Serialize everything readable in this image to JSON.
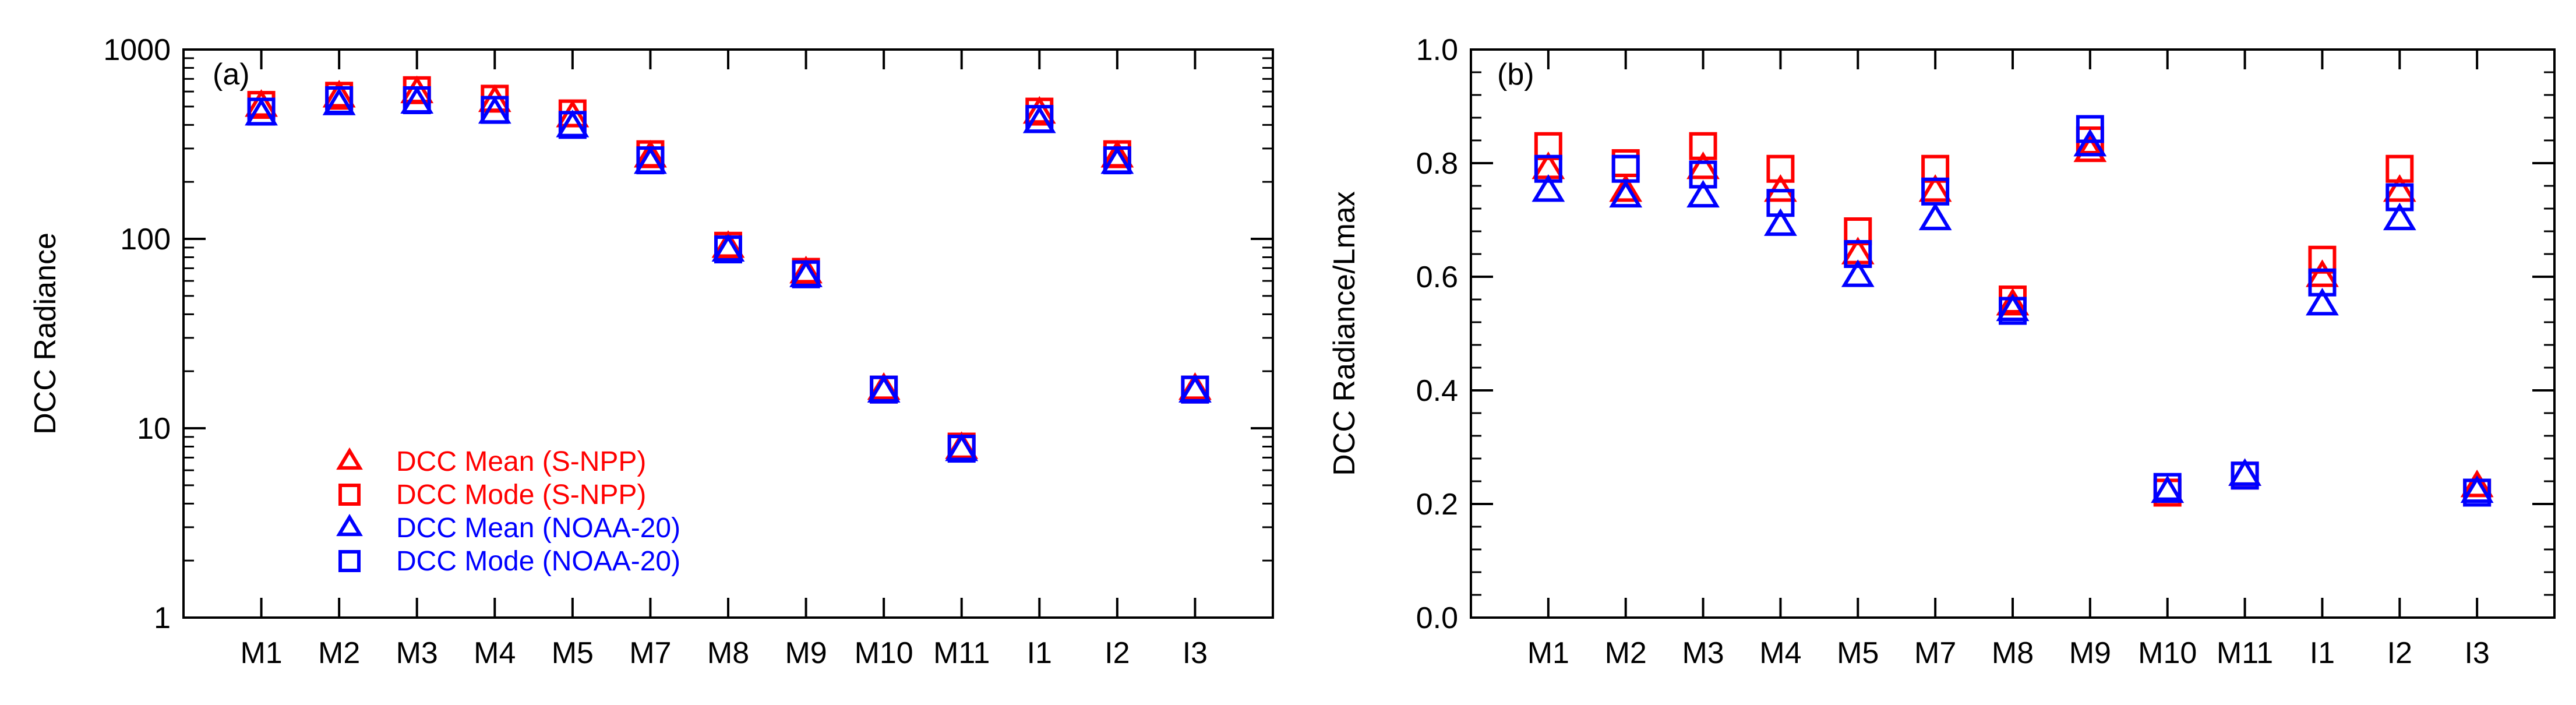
{
  "colors": {
    "snpp": "#ff0000",
    "noaa20": "#0000ff",
    "axis": "#000000"
  },
  "series_meta": [
    {
      "key": "mean_snpp",
      "name": "DCC Mean (S-NPP)",
      "marker": "triangle",
      "color": "#ff0000"
    },
    {
      "key": "mode_snpp",
      "name": "DCC Mode (S-NPP)",
      "marker": "square",
      "color": "#ff0000"
    },
    {
      "key": "mean_noaa20",
      "name": "DCC Mean (NOAA-20)",
      "marker": "triangle",
      "color": "#0000ff"
    },
    {
      "key": "mode_noaa20",
      "name": "DCC Mode (NOAA-20)",
      "marker": "square",
      "color": "#0000ff"
    }
  ],
  "chart_data": [
    {
      "type": "scatter",
      "panel_label": "(a)",
      "ylabel": "DCC Radiance",
      "xlabel": "",
      "yscale": "log",
      "ylim": [
        1,
        1000
      ],
      "yticks": [
        1,
        10,
        100,
        1000
      ],
      "ytick_labels": [
        "1",
        "10",
        "100",
        "1000"
      ],
      "categories": [
        "M1",
        "M2",
        "M3",
        "M4",
        "M5",
        "M7",
        "M8",
        "M9",
        "M10",
        "M11",
        "I1",
        "I2",
        "I3"
      ],
      "legend_position": "bottom-left",
      "series": [
        {
          "name": "DCC Mean (S-NPP)",
          "values": [
            500,
            560,
            590,
            530,
            440,
            270,
            90,
            66,
            16,
            7.8,
            460,
            270,
            16
          ]
        },
        {
          "name": "DCC Mode (S-NPP)",
          "values": [
            510,
            570,
            610,
            550,
            460,
            280,
            92,
            67,
            16,
            8.0,
            470,
            280,
            16
          ]
        },
        {
          "name": "DCC Mean (NOAA-20)",
          "values": [
            450,
            510,
            520,
            460,
            390,
            250,
            86,
            63,
            15.5,
            7.6,
            410,
            250,
            15.5
          ]
        },
        {
          "name": "DCC Mode (NOAA-20)",
          "values": [
            470,
            540,
            540,
            480,
            400,
            260,
            88,
            65,
            16,
            7.8,
            430,
            260,
            16
          ]
        }
      ]
    },
    {
      "type": "scatter",
      "panel_label": "(b)",
      "ylabel": "DCC Radiance/Lmax",
      "xlabel": "",
      "yscale": "linear",
      "ylim": [
        0,
        1.0
      ],
      "yticks": [
        0,
        0.2,
        0.4,
        0.6,
        0.8,
        1.0
      ],
      "ytick_labels": [
        "0.0",
        "0.2",
        "0.4",
        "0.6",
        "0.8",
        "1.0"
      ],
      "categories": [
        "M1",
        "M2",
        "M3",
        "M4",
        "M5",
        "M7",
        "M8",
        "M9",
        "M10",
        "M11",
        "I1",
        "I2",
        "I3"
      ],
      "series": [
        {
          "name": "DCC Mean (S-NPP)",
          "values": [
            0.79,
            0.75,
            0.79,
            0.75,
            0.64,
            0.75,
            0.55,
            0.82,
            0.22,
            0.25,
            0.6,
            0.75,
            0.23
          ]
        },
        {
          "name": "DCC Mode (S-NPP)",
          "values": [
            0.83,
            0.8,
            0.83,
            0.79,
            0.68,
            0.79,
            0.56,
            0.84,
            0.22,
            0.25,
            0.63,
            0.79,
            0.22
          ]
        },
        {
          "name": "DCC Mean (NOAA-20)",
          "values": [
            0.75,
            0.74,
            0.74,
            0.69,
            0.6,
            0.7,
            0.54,
            0.83,
            0.22,
            0.25,
            0.55,
            0.7,
            0.22
          ]
        },
        {
          "name": "DCC Mode (NOAA-20)",
          "values": [
            0.79,
            0.79,
            0.78,
            0.73,
            0.64,
            0.75,
            0.54,
            0.86,
            0.23,
            0.25,
            0.59,
            0.74,
            0.22
          ]
        }
      ]
    }
  ]
}
